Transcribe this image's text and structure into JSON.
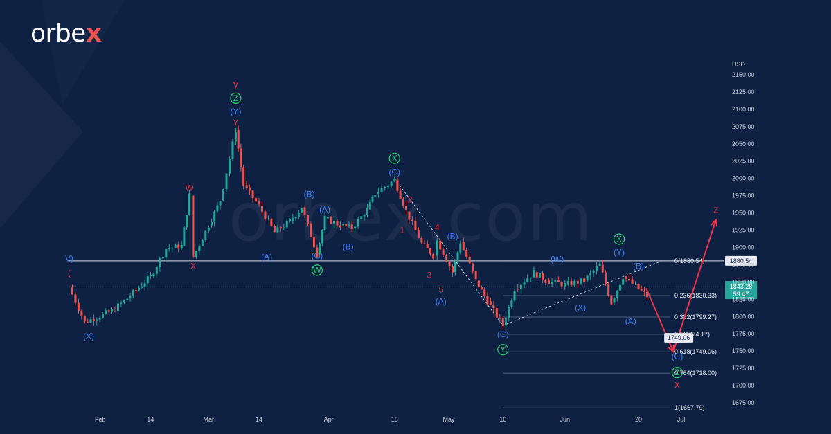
{
  "brand": {
    "name_main": "orbe",
    "name_accent": "x",
    "watermark": "orbex.com"
  },
  "chart_data": {
    "type": "candlestick",
    "title": "",
    "xlabel": "",
    "ylabel": "USD",
    "ylim": [
      1662,
      2178
    ],
    "grid": false,
    "price_axis_ticks": [
      "2150.00",
      "2125.00",
      "2100.00",
      "2075.00",
      "2050.00",
      "2025.00",
      "2000.00",
      "1975.00",
      "1950.00",
      "1925.00",
      "1900.00",
      "1875.00",
      "1850.00",
      "1825.00",
      "1800.00",
      "1775.00",
      "1750.00",
      "1725.00",
      "1700.00",
      "1675.00"
    ],
    "price_axis_values": [
      2150,
      2125,
      2100,
      2075,
      2050,
      2025,
      2000,
      1975,
      1950,
      1925,
      1900,
      1875,
      1850,
      1825,
      1800,
      1775,
      1750,
      1725,
      1700,
      1675
    ],
    "time_axis_ticks": [
      {
        "label": "Feb",
        "x": "2022-02-01"
      },
      {
        "label": "14",
        "x": "2022-02-14"
      },
      {
        "label": "Mar",
        "x": "2022-03-01"
      },
      {
        "label": "14",
        "x": "2022-03-14"
      },
      {
        "label": "Apr",
        "x": "2022-04-01"
      },
      {
        "label": "18",
        "x": "2022-04-18"
      },
      {
        "label": "May",
        "x": "2022-05-02"
      },
      {
        "label": "16",
        "x": "2022-05-16"
      },
      {
        "label": "Jun",
        "x": "2022-06-01"
      },
      {
        "label": "20",
        "x": "2022-06-20"
      },
      {
        "label": "Jul",
        "x": "2022-07-01"
      }
    ],
    "x_range": [
      "2022-01-24",
      "2022-07-12"
    ],
    "current_price": {
      "value": 1843.28,
      "label": "1843.28",
      "countdown": "59:47",
      "color": "#26a69a"
    },
    "horizontal_line": {
      "value": 1880.54,
      "label": "1880.54"
    },
    "fibonacci": [
      {
        "label": "0(1880.54)",
        "value": 1880.54
      },
      {
        "label": "0.236(1830.33)",
        "value": 1830.33
      },
      {
        "label": "0.382(1799.27)",
        "value": 1799.27
      },
      {
        "label": "0.5(1774.17)",
        "value": 1774.17
      },
      {
        "label": "0.618(1749.06)",
        "value": 1749.06
      },
      {
        "label": "0.764(1718.00)",
        "value": 1718.0
      },
      {
        "label": "1(1667.79)",
        "value": 1667.79
      }
    ],
    "target_label": {
      "label": "1749.06",
      "x": "2022-06-27",
      "y": 1749.06
    },
    "series": [
      {
        "ohlc_path": [
          [
            "2022-01-24",
            1842
          ],
          [
            "2022-01-28",
            1792
          ],
          [
            "2022-02-04",
            1808
          ],
          [
            "2022-02-08",
            1826
          ],
          [
            "2022-02-14",
            1858
          ],
          [
            "2022-02-18",
            1898
          ],
          [
            "2022-02-22",
            1902
          ],
          [
            "2022-02-24",
            1975
          ],
          [
            "2022-02-25",
            1886
          ],
          [
            "2022-03-01",
            1932
          ],
          [
            "2022-03-04",
            1968
          ],
          [
            "2022-03-08",
            2070
          ],
          [
            "2022-03-10",
            1990
          ],
          [
            "2022-03-14",
            1960
          ],
          [
            "2022-03-18",
            1922
          ],
          [
            "2022-03-22",
            1938
          ],
          [
            "2022-03-25",
            1958
          ],
          [
            "2022-03-29",
            1890
          ],
          [
            "2022-03-31",
            1942
          ],
          [
            "2022-04-04",
            1932
          ],
          [
            "2022-04-07",
            1928
          ],
          [
            "2022-04-11",
            1955
          ],
          [
            "2022-04-13",
            1978
          ],
          [
            "2022-04-18",
            1998
          ],
          [
            "2022-04-21",
            1952
          ],
          [
            "2022-04-25",
            1906
          ],
          [
            "2022-04-28",
            1888
          ],
          [
            "2022-04-29",
            1910
          ],
          [
            "2022-05-03",
            1864
          ],
          [
            "2022-05-05",
            1908
          ],
          [
            "2022-05-09",
            1852
          ],
          [
            "2022-05-12",
            1822
          ],
          [
            "2022-05-16",
            1787
          ],
          [
            "2022-05-19",
            1840
          ],
          [
            "2022-05-24",
            1864
          ],
          [
            "2022-05-27",
            1852
          ],
          [
            "2022-06-01",
            1846
          ],
          [
            "2022-06-06",
            1852
          ],
          [
            "2022-06-10",
            1875
          ],
          [
            "2022-06-13",
            1820
          ],
          [
            "2022-06-16",
            1858
          ],
          [
            "2022-06-20",
            1840
          ],
          [
            "2022-06-23",
            1826
          ]
        ]
      }
    ],
    "projection": [
      {
        "x": "2022-06-22",
        "y": 1841
      },
      {
        "x": "2022-06-29",
        "y": 1749.06
      },
      {
        "x": "2022-07-10",
        "y": 1940
      }
    ],
    "trendlines": [
      {
        "from": {
          "x": "2022-04-18",
          "y": 2000
        },
        "to": {
          "x": "2022-05-16",
          "y": 1787
        }
      },
      {
        "from": {
          "x": "2022-05-16",
          "y": 1787
        },
        "to": {
          "x": "2022-06-26",
          "y": 1880.54
        }
      }
    ],
    "wave_labels": [
      {
        "text": "y",
        "x": "2022-03-08",
        "y": 2132,
        "color": "#e2334a",
        "size": 15
      },
      {
        "text": "Z",
        "x": "2022-03-08",
        "y": 2112,
        "color": "#2ecc71",
        "circle": true
      },
      {
        "text": "(Y)",
        "x": "2022-03-08",
        "y": 2093,
        "color": "#3f7ff5"
      },
      {
        "text": "Y",
        "x": "2022-03-08",
        "y": 2077,
        "color": "#e2334a"
      },
      {
        "text": "W",
        "x": "2022-02-24",
        "y": 1982,
        "color": "#e2334a"
      },
      {
        "text": "X",
        "x": "2022-02-25",
        "y": 1869,
        "color": "#e2334a"
      },
      {
        "text": "(X)",
        "x": "2022-01-29",
        "y": 1767,
        "color": "#3f7ff5"
      },
      {
        "text": "(A)",
        "x": "2022-03-16",
        "y": 1882,
        "color": "#3f7ff5"
      },
      {
        "text": "(B)",
        "x": "2022-03-27",
        "y": 1973,
        "color": "#3f7ff5"
      },
      {
        "text": "(C)",
        "x": "2022-03-29",
        "y": 1884,
        "color": "#3f7ff5"
      },
      {
        "text": "W",
        "x": "2022-03-29",
        "y": 1863,
        "color": "#2ecc71",
        "circle": true
      },
      {
        "text": "(A)",
        "x": "2022-03-31",
        "y": 1951,
        "color": "#3f7ff5"
      },
      {
        "text": "(B)",
        "x": "2022-04-06",
        "y": 1897,
        "color": "#3f7ff5"
      },
      {
        "text": "X",
        "x": "2022-04-18",
        "y": 2025,
        "color": "#2ecc71",
        "circle": true
      },
      {
        "text": "(C)",
        "x": "2022-04-18",
        "y": 2005,
        "color": "#3f7ff5"
      },
      {
        "text": "1",
        "x": "2022-04-20",
        "y": 1921,
        "color": "#e2334a"
      },
      {
        "text": "2",
        "x": "2022-04-22",
        "y": 1965,
        "color": "#e2334a"
      },
      {
        "text": "3",
        "x": "2022-04-27",
        "y": 1856,
        "color": "#e2334a"
      },
      {
        "text": "4",
        "x": "2022-04-29",
        "y": 1925,
        "color": "#e2334a"
      },
      {
        "text": "5",
        "x": "2022-04-30",
        "y": 1835,
        "color": "#e2334a"
      },
      {
        "text": "(A)",
        "x": "2022-04-30",
        "y": 1818,
        "color": "#3f7ff5"
      },
      {
        "text": "(B)",
        "x": "2022-05-03",
        "y": 1912,
        "color": "#3f7ff5"
      },
      {
        "text": "(C)",
        "x": "2022-05-16",
        "y": 1770,
        "color": "#3f7ff5"
      },
      {
        "text": "Y",
        "x": "2022-05-16",
        "y": 1748,
        "color": "#2ecc71",
        "circle": true
      },
      {
        "text": "(W)",
        "x": "2022-05-30",
        "y": 1879,
        "color": "#3f7ff5"
      },
      {
        "text": "(X)",
        "x": "2022-06-05",
        "y": 1809,
        "color": "#3f7ff5"
      },
      {
        "text": "X",
        "x": "2022-06-15",
        "y": 1908,
        "color": "#2ecc71",
        "circle": true
      },
      {
        "text": "(Y)",
        "x": "2022-06-15",
        "y": 1889,
        "color": "#3f7ff5"
      },
      {
        "text": "(A)",
        "x": "2022-06-18",
        "y": 1789,
        "color": "#3f7ff5"
      },
      {
        "text": "(B)",
        "x": "2022-06-20",
        "y": 1869,
        "color": "#3f7ff5"
      },
      {
        "text": "(C)",
        "x": "2022-06-30",
        "y": 1738,
        "color": "#3f7ff5"
      },
      {
        "text": "Z",
        "x": "2022-06-30",
        "y": 1715,
        "color": "#2ecc71",
        "circle": true
      },
      {
        "text": "x",
        "x": "2022-06-30",
        "y": 1697,
        "color": "#e2334a",
        "size": 15
      },
      {
        "text": "z",
        "x": "2022-07-10",
        "y": 1950,
        "color": "#e2334a",
        "size": 15
      },
      {
        "text": "V)",
        "x": "2022-01-24",
        "y": 1880,
        "color": "#3f7ff5"
      },
      {
        "text": "(",
        "x": "2022-01-24",
        "y": 1859,
        "color": "#e2334a"
      }
    ]
  }
}
